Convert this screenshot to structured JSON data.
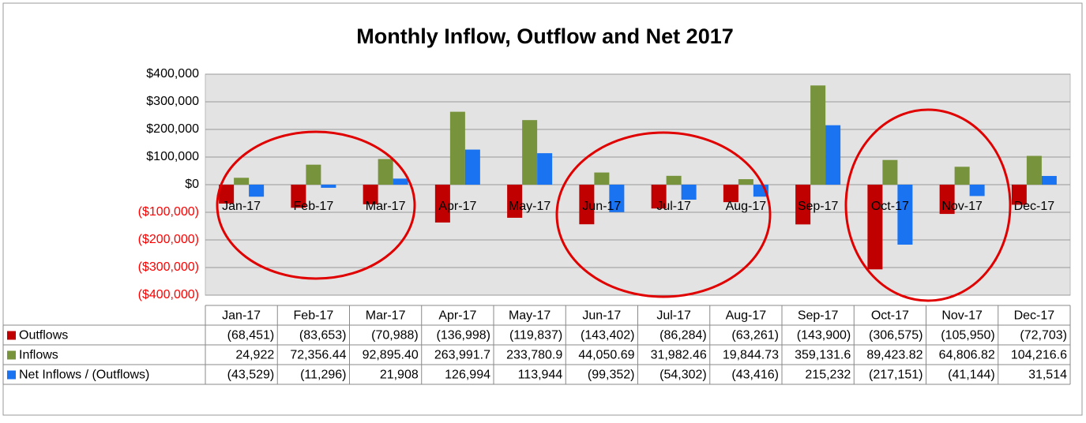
{
  "chart_data": {
    "type": "bar",
    "title": "Monthly Inflow, Outflow and Net 2017",
    "categories": [
      "Jan-17",
      "Feb-17",
      "Mar-17",
      "Apr-17",
      "May-17",
      "Jun-17",
      "Jul-17",
      "Aug-17",
      "Sep-17",
      "Oct-17",
      "Nov-17",
      "Dec-17"
    ],
    "series": [
      {
        "name": "Outflows",
        "color": "#c00000",
        "values": [
          -68451,
          -83653,
          -70988,
          -136998,
          -119837,
          -143402,
          -86284,
          -63261,
          -143900,
          -306575,
          -105950,
          -72703
        ],
        "value_labels": [
          "(68,451)",
          "(83,653)",
          "(70,988)",
          "(136,998)",
          "(119,837)",
          "(143,402)",
          "(86,284)",
          "(63,261)",
          "(143,900)",
          "(306,575)",
          "(105,950)",
          "(72,703)"
        ]
      },
      {
        "name": "Inflows",
        "color": "#77933c",
        "values": [
          24922,
          72356.44,
          92895.4,
          263991.7,
          233780.9,
          44050.69,
          31982.46,
          19844.73,
          359131.6,
          89423.82,
          64806.82,
          104216.6
        ],
        "value_labels": [
          "24,922",
          "72,356.44",
          "92,895.40",
          "263,991.7",
          "233,780.9",
          "44,050.69",
          "31,982.46",
          "19,844.73",
          "359,131.6",
          "89,423.82",
          "64,806.82",
          "104,216.6"
        ]
      },
      {
        "name": "Net Inflows / (Outflows)",
        "color": "#1a73f0",
        "values": [
          -43529,
          -11296,
          21908,
          126994,
          113944,
          -99352,
          -54302,
          -43416,
          215232,
          -217151,
          -41144,
          31514
        ],
        "value_labels": [
          "(43,529)",
          "(11,296)",
          "21,908",
          "126,994",
          "113,944",
          "(99,352)",
          "(54,302)",
          "(43,416)",
          "215,232",
          "(217,151)",
          "(41,144)",
          "31,514"
        ]
      }
    ],
    "ylim": [
      -400000,
      400000
    ],
    "yticks": [
      {
        "value": -400000,
        "label": "($400,000)"
      },
      {
        "value": -300000,
        "label": "($300,000)"
      },
      {
        "value": -200000,
        "label": "($200,000)"
      },
      {
        "value": -100000,
        "label": "($100,000)"
      },
      {
        "value": 0,
        "label": "$0"
      },
      {
        "value": 100000,
        "label": "$100,000"
      },
      {
        "value": 200000,
        "label": "$200,000"
      },
      {
        "value": 300000,
        "label": "$300,000"
      },
      {
        "value": 400000,
        "label": "$400,000"
      }
    ],
    "negative_tick_color": "#ff0000",
    "grid": true
  }
}
